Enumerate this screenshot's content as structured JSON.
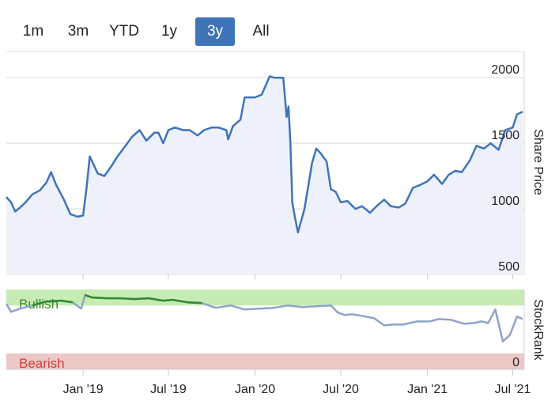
{
  "range_selector": {
    "buttons": [
      {
        "label": "1m",
        "selected": false
      },
      {
        "label": "3m",
        "selected": false
      },
      {
        "label": "YTD",
        "selected": false
      },
      {
        "label": "1y",
        "selected": false
      },
      {
        "label": "3y",
        "selected": true
      },
      {
        "label": "All",
        "selected": false
      }
    ]
  },
  "colors": {
    "selected_button": "#3f74b9",
    "price_line": "#3f74b9",
    "price_area": "#eef1f9",
    "bullish_zone": "#c6ecb4",
    "bearish_zone": "#ecc9c6",
    "bullish_line": "#2e8b2e",
    "rank_line": "#8fa2c8",
    "bullish_text": "#3b8a2e",
    "bearish_text": "#d0403e",
    "grid": "#d9d9d9"
  },
  "chart_data": [
    {
      "type": "area",
      "ylabel": "Share Price",
      "ylim": [
        500,
        2200
      ],
      "yticks": [
        500,
        1000,
        1500,
        2000
      ],
      "x_ticks": [
        "Jan '19",
        "Jul '19",
        "Jan '20",
        "Jul '20",
        "Jan '21",
        "Jul '21"
      ],
      "x_tick_dates": [
        "2019-01-01",
        "2019-07-01",
        "2020-01-01",
        "2020-07-01",
        "2021-01-01",
        "2021-07-01"
      ],
      "xlim": [
        "2018-07-22",
        "2021-07-22"
      ],
      "grid": true,
      "series": [
        {
          "x": [
            "2018-07-22",
            "2018-08-01",
            "2018-08-10",
            "2018-08-20",
            "2018-09-01",
            "2018-09-15",
            "2018-10-01",
            "2018-10-15",
            "2018-10-25",
            "2018-11-05",
            "2018-11-20",
            "2018-12-05",
            "2018-12-20",
            "2019-01-01",
            "2019-01-08",
            "2019-01-15",
            "2019-02-01",
            "2019-02-15",
            "2019-03-01",
            "2019-03-15",
            "2019-04-01",
            "2019-04-15",
            "2019-05-01",
            "2019-05-15",
            "2019-06-01",
            "2019-06-10",
            "2019-06-20",
            "2019-07-01",
            "2019-07-15",
            "2019-08-01",
            "2019-08-15",
            "2019-09-01",
            "2019-09-15",
            "2019-10-01",
            "2019-10-15",
            "2019-11-01",
            "2019-11-05",
            "2019-11-15",
            "2019-12-01",
            "2019-12-10",
            "2019-12-20",
            "2020-01-01",
            "2020-01-15",
            "2020-02-01",
            "2020-02-10",
            "2020-02-20",
            "2020-03-01",
            "2020-03-08",
            "2020-03-12",
            "2020-03-16",
            "2020-03-20",
            "2020-03-25",
            "2020-04-01",
            "2020-04-15",
            "2020-05-01",
            "2020-05-10",
            "2020-05-20",
            "2020-06-01",
            "2020-06-10",
            "2020-06-20",
            "2020-07-01",
            "2020-07-15",
            "2020-08-01",
            "2020-08-15",
            "2020-09-01",
            "2020-09-15",
            "2020-10-01",
            "2020-10-15",
            "2020-11-01",
            "2020-11-15",
            "2020-12-01",
            "2020-12-15",
            "2021-01-01",
            "2021-01-15",
            "2021-02-01",
            "2021-02-15",
            "2021-03-01",
            "2021-03-15",
            "2021-04-01",
            "2021-04-15",
            "2021-05-01",
            "2021-05-15",
            "2021-06-01",
            "2021-06-15",
            "2021-07-01",
            "2021-07-10",
            "2021-07-22"
          ],
          "values": [
            1090,
            1050,
            980,
            1010,
            1050,
            1110,
            1140,
            1200,
            1280,
            1180,
            1080,
            960,
            940,
            950,
            1150,
            1400,
            1270,
            1250,
            1320,
            1400,
            1480,
            1550,
            1600,
            1520,
            1580,
            1580,
            1500,
            1600,
            1620,
            1600,
            1600,
            1560,
            1600,
            1620,
            1620,
            1600,
            1530,
            1630,
            1680,
            1850,
            1850,
            1850,
            1870,
            2010,
            2000,
            2000,
            2000,
            1700,
            1780,
            1500,
            1050,
            950,
            820,
            1000,
            1350,
            1460,
            1420,
            1360,
            1150,
            1130,
            1050,
            1060,
            1000,
            1020,
            970,
            1020,
            1070,
            1020,
            1010,
            1040,
            1160,
            1180,
            1210,
            1260,
            1190,
            1260,
            1290,
            1280,
            1370,
            1480,
            1460,
            1500,
            1450,
            1600,
            1620,
            1720,
            1740
          ]
        }
      ]
    },
    {
      "type": "line",
      "ylabel": "StockRank",
      "ylim": [
        0,
        100
      ],
      "yticks": [
        0
      ],
      "zones": [
        {
          "label": "Bullish",
          "from": 80,
          "to": 100
        },
        {
          "label": "Bearish",
          "from": 0,
          "to": 20
        }
      ],
      "series": [
        {
          "x": [
            "2018-07-22",
            "2018-08-01",
            "2018-08-20",
            "2018-09-15",
            "2018-10-15",
            "2018-11-15",
            "2018-12-10",
            "2018-12-28",
            "2019-01-05",
            "2019-01-20",
            "2019-02-20",
            "2019-03-20",
            "2019-04-20",
            "2019-05-20",
            "2019-06-20",
            "2019-07-10",
            "2019-08-10",
            "2019-09-10",
            "2019-10-10",
            "2019-11-10",
            "2019-12-10",
            "2020-01-10",
            "2020-02-10",
            "2020-03-10",
            "2020-04-10",
            "2020-05-10",
            "2020-06-10",
            "2020-06-25",
            "2020-07-10",
            "2020-07-25",
            "2020-08-15",
            "2020-09-10",
            "2020-10-01",
            "2020-10-20",
            "2020-11-10",
            "2020-12-10",
            "2021-01-05",
            "2021-01-25",
            "2021-02-20",
            "2021-03-20",
            "2021-04-10",
            "2021-04-25",
            "2021-05-10",
            "2021-05-25",
            "2021-06-10",
            "2021-06-25",
            "2021-07-10",
            "2021-07-22"
          ],
          "values": [
            82,
            72,
            76,
            80,
            85,
            86,
            84,
            76,
            93,
            90,
            89,
            89,
            88,
            89,
            86,
            87,
            84,
            83,
            77,
            80,
            75,
            76,
            77,
            80,
            78,
            79,
            80,
            71,
            68,
            69,
            67,
            64,
            55,
            56,
            56,
            60,
            60,
            63,
            62,
            57,
            58,
            60,
            58,
            75,
            35,
            43,
            66,
            63
          ]
        }
      ]
    }
  ]
}
